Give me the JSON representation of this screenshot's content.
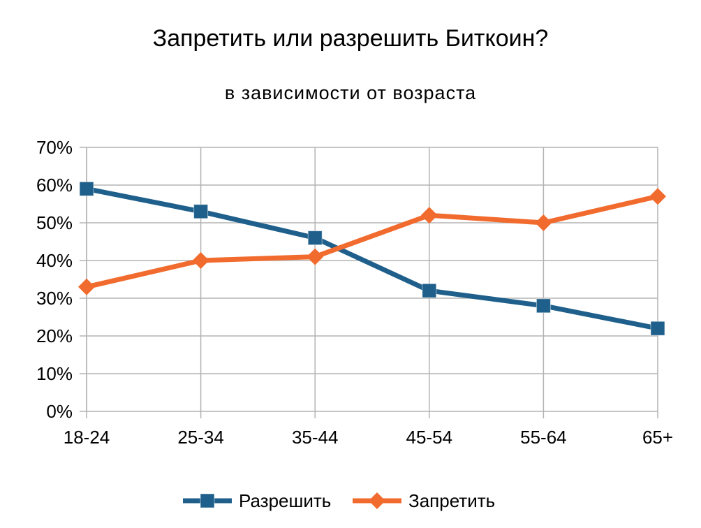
{
  "chart_data": {
    "type": "line",
    "title": "Запретить или разрешить Биткоин?",
    "subtitle": "в зависимости от возраста",
    "xlabel": "",
    "ylabel": "",
    "categories": [
      "18-24",
      "25-34",
      "35-44",
      "45-54",
      "55-64",
      "65+"
    ],
    "y_tick_labels": [
      "0%",
      "10%",
      "20%",
      "30%",
      "40%",
      "50%",
      "60%",
      "70%"
    ],
    "ylim": [
      0,
      70
    ],
    "y_unit": "%",
    "grid": true,
    "legend_position": "bottom",
    "series": [
      {
        "name": "Разрешить",
        "values": [
          59,
          53,
          46,
          32,
          28,
          22
        ],
        "color": "#1f5f8b",
        "marker": "square"
      },
      {
        "name": "Запретить",
        "values": [
          33,
          40,
          41,
          52,
          50,
          57
        ],
        "color": "#f26b2e",
        "marker": "diamond"
      }
    ]
  }
}
